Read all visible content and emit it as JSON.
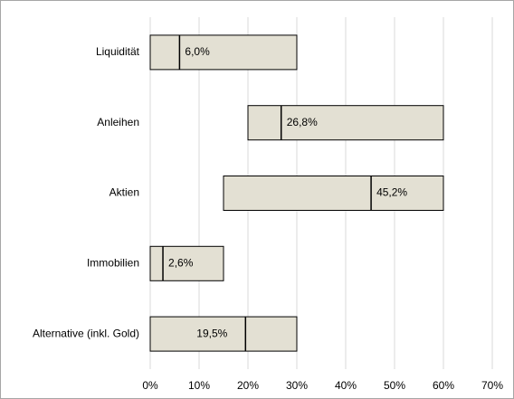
{
  "chart_data": {
    "type": "range_bar",
    "categories": [
      "Liquidität",
      "Anleihen",
      "Aktien",
      "Immobilien",
      "Alternative (inkl. Gold)"
    ],
    "low": [
      0,
      20,
      15,
      0,
      0
    ],
    "high": [
      30,
      60,
      60,
      15,
      30
    ],
    "values": [
      6.0,
      26.8,
      45.2,
      2.6,
      19.5
    ],
    "value_labels": [
      "6,0%",
      "26,8%",
      "45,2%",
      "2,6%",
      "19,5%"
    ],
    "color": "#e3e0d3",
    "xlim": [
      0,
      70
    ],
    "xticks": [
      {
        "value": 0,
        "label": "0%"
      },
      {
        "value": 10,
        "label": "10%"
      },
      {
        "value": 20,
        "label": "20%"
      },
      {
        "value": 30,
        "label": "30%"
      },
      {
        "value": 40,
        "label": "40%"
      },
      {
        "value": 50,
        "label": "50%"
      },
      {
        "value": 60,
        "label": "60%"
      },
      {
        "value": 70,
        "label": "70%"
      }
    ],
    "grid": true
  }
}
